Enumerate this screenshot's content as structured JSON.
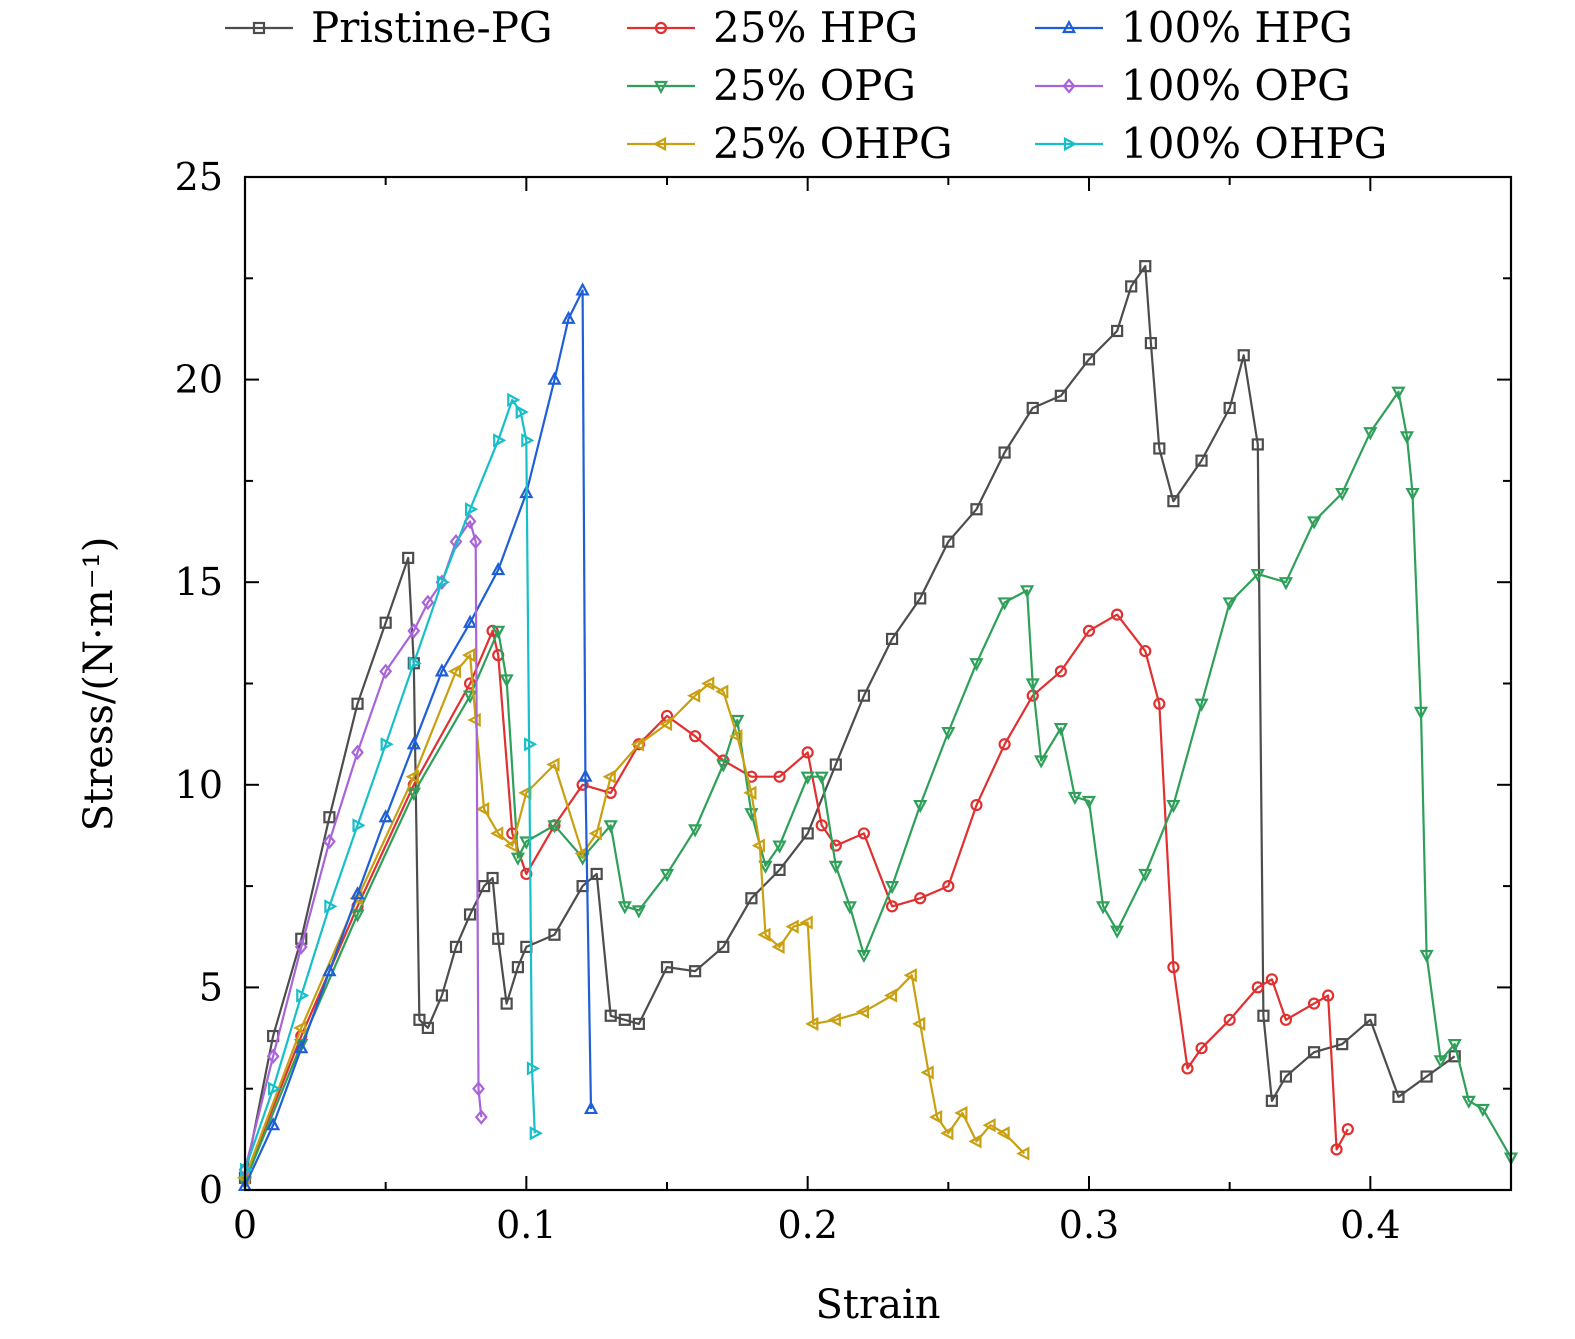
{
  "chart_data": {
    "type": "line",
    "title": "",
    "xlabel": "Strain",
    "ylabel": "Stress/(N·m⁻¹)",
    "xlim": [
      0,
      0.45
    ],
    "ylim": [
      0,
      25
    ],
    "xticks": [
      0,
      0.1,
      0.2,
      0.3,
      0.4
    ],
    "xtick_labels": [
      "0",
      "0.1",
      "0.2",
      "0.3",
      "0.4"
    ],
    "yticks": [
      0,
      5,
      10,
      15,
      20,
      25
    ],
    "ytick_labels": [
      "0",
      "5",
      "10",
      "15",
      "20",
      "25"
    ],
    "grid": false,
    "legend_position": "top",
    "series": [
      {
        "name": "Pristine-PG",
        "color": "#4d4d4d",
        "marker": "square",
        "x": [
          0,
          0.01,
          0.02,
          0.03,
          0.04,
          0.05,
          0.058,
          0.06,
          0.062,
          0.065,
          0.07,
          0.075,
          0.08,
          0.085,
          0.088,
          0.09,
          0.093,
          0.097,
          0.1,
          0.11,
          0.12,
          0.125,
          0.13,
          0.135,
          0.14,
          0.15,
          0.16,
          0.17,
          0.18,
          0.19,
          0.2,
          0.21,
          0.22,
          0.23,
          0.24,
          0.25,
          0.26,
          0.27,
          0.28,
          0.29,
          0.3,
          0.31,
          0.315,
          0.32,
          0.322,
          0.325,
          0.33,
          0.34,
          0.35,
          0.355,
          0.36,
          0.362,
          0.365,
          0.37,
          0.38,
          0.39,
          0.4,
          0.41,
          0.42,
          0.43
        ],
        "y": [
          0.3,
          3.8,
          6.2,
          9.2,
          12.0,
          14.0,
          15.6,
          13.0,
          4.2,
          4.0,
          4.8,
          6.0,
          6.8,
          7.5,
          7.7,
          6.2,
          4.6,
          5.5,
          6.0,
          6.3,
          7.5,
          7.8,
          4.3,
          4.2,
          4.1,
          5.5,
          5.4,
          6.0,
          7.2,
          7.9,
          8.8,
          10.5,
          12.2,
          13.6,
          14.6,
          16.0,
          16.8,
          18.2,
          19.3,
          19.6,
          20.5,
          21.2,
          22.3,
          22.8,
          20.9,
          18.3,
          17.0,
          18.0,
          19.3,
          20.6,
          18.4,
          4.3,
          2.2,
          2.8,
          3.4,
          3.6,
          4.2,
          2.3,
          2.8,
          3.3
        ]
      },
      {
        "name": "25% HPG",
        "color": "#e03030",
        "marker": "circle",
        "x": [
          0,
          0.02,
          0.04,
          0.06,
          0.08,
          0.088,
          0.09,
          0.095,
          0.1,
          0.11,
          0.12,
          0.13,
          0.14,
          0.15,
          0.16,
          0.17,
          0.18,
          0.19,
          0.2,
          0.205,
          0.21,
          0.22,
          0.23,
          0.24,
          0.25,
          0.26,
          0.27,
          0.28,
          0.29,
          0.3,
          0.31,
          0.32,
          0.325,
          0.33,
          0.335,
          0.34,
          0.35,
          0.36,
          0.365,
          0.37,
          0.38,
          0.385,
          0.388,
          0.392
        ],
        "y": [
          0.3,
          3.8,
          7.0,
          10.0,
          12.5,
          13.8,
          13.2,
          8.8,
          7.8,
          9.0,
          10.0,
          9.8,
          11.0,
          11.7,
          11.2,
          10.6,
          10.2,
          10.2,
          10.8,
          9.0,
          8.5,
          8.8,
          7.0,
          7.2,
          7.5,
          9.5,
          11.0,
          12.2,
          12.8,
          13.8,
          14.2,
          13.3,
          12.0,
          5.5,
          3.0,
          3.5,
          4.2,
          5.0,
          5.2,
          4.2,
          4.6,
          4.8,
          1.0,
          1.5
        ]
      },
      {
        "name": "25% OPG",
        "color": "#2fa05a",
        "marker": "triangle-down",
        "x": [
          0,
          0.02,
          0.04,
          0.06,
          0.08,
          0.09,
          0.093,
          0.097,
          0.1,
          0.11,
          0.12,
          0.13,
          0.135,
          0.14,
          0.15,
          0.16,
          0.17,
          0.175,
          0.18,
          0.185,
          0.19,
          0.2,
          0.205,
          0.21,
          0.215,
          0.22,
          0.23,
          0.24,
          0.25,
          0.26,
          0.27,
          0.278,
          0.28,
          0.283,
          0.29,
          0.295,
          0.3,
          0.305,
          0.31,
          0.32,
          0.33,
          0.34,
          0.35,
          0.36,
          0.37,
          0.38,
          0.39,
          0.4,
          0.41,
          0.413,
          0.415,
          0.418,
          0.42,
          0.425,
          0.43,
          0.435,
          0.44,
          0.45
        ],
        "y": [
          0.2,
          3.6,
          6.8,
          9.8,
          12.2,
          13.8,
          12.6,
          8.2,
          8.6,
          9.0,
          8.2,
          9.0,
          7.0,
          6.9,
          7.8,
          8.9,
          10.5,
          11.6,
          9.3,
          8.0,
          8.5,
          10.2,
          10.2,
          8.0,
          7.0,
          5.8,
          7.5,
          9.5,
          11.3,
          13.0,
          14.5,
          14.8,
          12.5,
          10.6,
          11.4,
          9.7,
          9.6,
          7.0,
          6.4,
          7.8,
          9.5,
          12.0,
          14.5,
          15.2,
          15.0,
          16.5,
          17.2,
          18.7,
          19.7,
          18.6,
          17.2,
          11.8,
          5.8,
          3.2,
          3.6,
          2.2,
          2.0,
          0.8
        ]
      },
      {
        "name": "25% OHPG",
        "color": "#c9a012",
        "marker": "triangle-left",
        "x": [
          0,
          0.02,
          0.04,
          0.06,
          0.075,
          0.08,
          0.082,
          0.085,
          0.09,
          0.095,
          0.1,
          0.11,
          0.12,
          0.125,
          0.13,
          0.14,
          0.15,
          0.16,
          0.165,
          0.17,
          0.175,
          0.18,
          0.183,
          0.185,
          0.19,
          0.195,
          0.2,
          0.202,
          0.21,
          0.22,
          0.23,
          0.237,
          0.24,
          0.243,
          0.246,
          0.25,
          0.255,
          0.26,
          0.265,
          0.27,
          0.277
        ],
        "y": [
          0.3,
          4.0,
          7.2,
          10.2,
          12.8,
          13.2,
          11.6,
          9.4,
          8.8,
          8.5,
          9.8,
          10.5,
          8.3,
          8.8,
          10.2,
          11.0,
          11.5,
          12.2,
          12.5,
          12.3,
          11.2,
          9.8,
          8.5,
          6.3,
          6.0,
          6.5,
          6.6,
          4.1,
          4.2,
          4.4,
          4.8,
          5.3,
          4.1,
          2.9,
          1.8,
          1.4,
          1.9,
          1.2,
          1.6,
          1.4,
          0.9
        ]
      },
      {
        "name": "100% HPG",
        "color": "#1f5fd6",
        "marker": "triangle-up",
        "x": [
          0,
          0.01,
          0.02,
          0.03,
          0.04,
          0.05,
          0.06,
          0.07,
          0.08,
          0.09,
          0.1,
          0.11,
          0.115,
          0.12,
          0.121,
          0.123
        ],
        "y": [
          0.1,
          1.6,
          3.5,
          5.4,
          7.3,
          9.2,
          11.0,
          12.8,
          14.0,
          15.3,
          17.2,
          20.0,
          21.5,
          22.2,
          10.2,
          2.0
        ]
      },
      {
        "name": "100% OPG",
        "color": "#a864d8",
        "marker": "diamond",
        "x": [
          0,
          0.01,
          0.02,
          0.03,
          0.04,
          0.05,
          0.06,
          0.065,
          0.07,
          0.075,
          0.08,
          0.082,
          0.083,
          0.084
        ],
        "y": [
          0.5,
          3.3,
          6.0,
          8.6,
          10.8,
          12.8,
          13.8,
          14.5,
          15.0,
          16.0,
          16.5,
          16.0,
          2.5,
          1.8
        ]
      },
      {
        "name": "100% OHPG",
        "color": "#17bfc8",
        "marker": "triangle-right",
        "x": [
          0,
          0.01,
          0.02,
          0.03,
          0.04,
          0.05,
          0.06,
          0.07,
          0.08,
          0.09,
          0.095,
          0.098,
          0.1,
          0.101,
          0.102,
          0.103
        ],
        "y": [
          0.5,
          2.5,
          4.8,
          7.0,
          9.0,
          11.0,
          13.0,
          15.0,
          16.8,
          18.5,
          19.5,
          19.2,
          18.5,
          11.0,
          3.0,
          1.4
        ]
      }
    ]
  }
}
